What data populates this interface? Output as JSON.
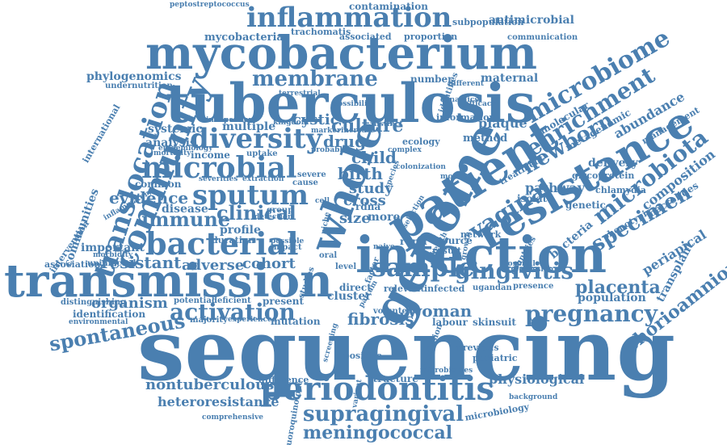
{
  "colors": {
    "word": "#4a7fb0",
    "background": "#ffffff"
  },
  "words": [
    "sequencing",
    "transmission",
    "mycobacterium",
    "tuberculosis",
    "infection",
    "genome",
    "patient",
    "resistance",
    "periodontitis",
    "inflammation",
    "community",
    "translocation",
    "bacterial",
    "microbial",
    "sputum",
    "diversity",
    "whole",
    "sample",
    "gingivitis",
    "microbiome",
    "enrichment",
    "microbiota",
    "newborn",
    "vaginal",
    "specimen",
    "pregnancy",
    "chorioamnionitis",
    "supragingival",
    "meningococcal",
    "activation",
    "spontaneous",
    "clinical",
    "immune",
    "membrane",
    "culture",
    "placenta",
    "fibrosis",
    "woman",
    "cystic",
    "drug",
    "birth",
    "child",
    "study",
    "cross",
    "evidence",
    "resistant",
    "adverse",
    "cohort",
    "nontuberculous",
    "heteroresistance",
    "organism",
    "physiological",
    "periapical",
    "transplant",
    "composition",
    "abundance",
    "delivery",
    "pathway",
    "plaque",
    "systemic",
    "multiple",
    "analysis",
    "income",
    "common",
    "disease",
    "profile",
    "important",
    "communities",
    "phylogenomics",
    "antimicrobial",
    "contamination",
    "subpopulation",
    "mycobacteria",
    "trachomatis",
    "associated",
    "proportion",
    "maternal",
    "number",
    "molecular",
    "metagenomic",
    "population",
    "bacteria",
    "genetic",
    "skinsuit",
    "labour",
    "mutation",
    "present",
    "identification",
    "structure",
    "difference",
    "positive",
    "previous",
    "pediatric",
    "microbiology",
    "cluster",
    "rdna",
    "more",
    "size",
    "direct",
    "source",
    "result",
    "network",
    "isolate",
    "relevant",
    "infected",
    "ugandan",
    "presence",
    "rural",
    "method",
    "information",
    "ecology",
    "treatment",
    "phenotypic",
    "macrolides",
    "management",
    "glycoprotein",
    "chlamydia",
    "intervention",
    "association",
    "potential",
    "deficient",
    "majority",
    "experienced",
    "uninfected",
    "morbidity",
    "distinguishing",
    "environmental",
    "duration",
    "international",
    "undernutrition",
    "peptostreptococcus",
    "communication",
    "fluoroquinolone",
    "comprehensive",
    "variant",
    "background",
    "volunteer",
    "partum",
    "conclusion",
    "cause",
    "uptake",
    "severe",
    "mortality",
    "impact",
    "identifies",
    "different",
    "kingdom",
    "marker",
    "colonization",
    "detection",
    "group",
    "oral",
    "level",
    "factor",
    "hospital",
    "countries",
    "regression",
    "microbiomes",
    "studies",
    "epidemiology",
    "selection",
    "dynamics",
    "probable",
    "severities",
    "extraction",
    "terrestrial",
    "possible",
    "niche",
    "naive",
    "inflammatory",
    "independent",
    "distinct",
    "complex",
    "growth",
    "increase",
    "efficacy",
    "screening",
    "possibility",
    "health",
    "cell",
    "mother",
    "species"
  ]
}
